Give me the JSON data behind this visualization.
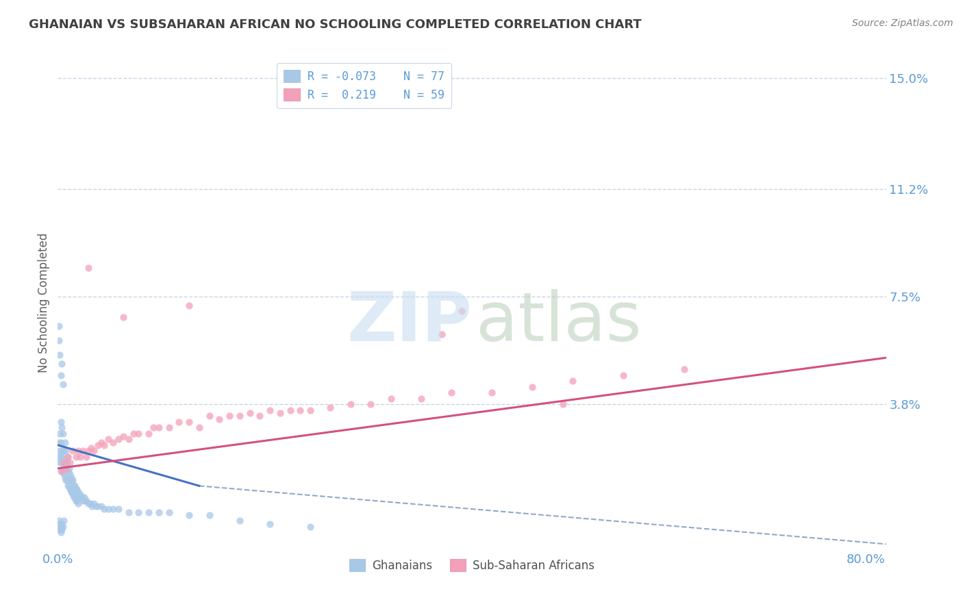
{
  "title": "GHANAIAN VS SUBSAHARAN AFRICAN NO SCHOOLING COMPLETED CORRELATION CHART",
  "source": "Source: ZipAtlas.com",
  "ylabel": "No Schooling Completed",
  "xlim": [
    0.0,
    0.82
  ],
  "ylim": [
    -0.012,
    0.158
  ],
  "ytick_vals": [
    0.0,
    0.038,
    0.075,
    0.112,
    0.15
  ],
  "ytick_labels": [
    "",
    "3.8%",
    "7.5%",
    "11.2%",
    "15.0%"
  ],
  "legend_label1": "Ghanaians",
  "legend_label2": "Sub-Saharan Africans",
  "color_blue": "#a8c8e8",
  "color_pink": "#f4a0b8",
  "line_blue": "#4472c4",
  "line_pink": "#d45080",
  "line_dash_color": "#90a8c8",
  "title_color": "#404040",
  "axis_label_color": "#5b9bd5",
  "ylabel_color": "#606060",
  "source_color": "#808080",
  "grid_color": "#c8d4e4",
  "ghanaians_x": [
    0.001,
    0.001,
    0.002,
    0.002,
    0.002,
    0.003,
    0.003,
    0.003,
    0.003,
    0.004,
    0.004,
    0.004,
    0.005,
    0.005,
    0.005,
    0.006,
    0.006,
    0.007,
    0.007,
    0.007,
    0.008,
    0.008,
    0.008,
    0.009,
    0.009,
    0.01,
    0.01,
    0.01,
    0.011,
    0.011,
    0.012,
    0.012,
    0.013,
    0.013,
    0.014,
    0.014,
    0.015,
    0.015,
    0.016,
    0.016,
    0.017,
    0.017,
    0.018,
    0.018,
    0.019,
    0.019,
    0.02,
    0.02,
    0.021,
    0.022,
    0.023,
    0.024,
    0.025,
    0.026,
    0.027,
    0.028,
    0.03,
    0.032,
    0.034,
    0.036,
    0.038,
    0.04,
    0.043,
    0.046,
    0.05,
    0.055,
    0.06,
    0.07,
    0.08,
    0.09,
    0.1,
    0.11,
    0.13,
    0.15,
    0.18,
    0.21,
    0.25
  ],
  "ghanaians_y": [
    0.02,
    0.025,
    0.018,
    0.022,
    0.028,
    0.015,
    0.02,
    0.025,
    0.032,
    0.018,
    0.022,
    0.03,
    0.016,
    0.02,
    0.028,
    0.014,
    0.022,
    0.013,
    0.018,
    0.025,
    0.012,
    0.016,
    0.022,
    0.012,
    0.018,
    0.01,
    0.015,
    0.02,
    0.01,
    0.016,
    0.009,
    0.014,
    0.008,
    0.013,
    0.008,
    0.012,
    0.007,
    0.012,
    0.006,
    0.01,
    0.006,
    0.01,
    0.005,
    0.009,
    0.005,
    0.009,
    0.004,
    0.008,
    0.007,
    0.007,
    0.006,
    0.006,
    0.005,
    0.006,
    0.005,
    0.005,
    0.004,
    0.004,
    0.003,
    0.004,
    0.003,
    0.003,
    0.003,
    0.002,
    0.002,
    0.002,
    0.002,
    0.001,
    0.001,
    0.001,
    0.001,
    0.001,
    0.0,
    0.0,
    -0.002,
    -0.003,
    -0.004
  ],
  "ghanaians_extra_low": [
    [
      0.001,
      -0.002
    ],
    [
      0.002,
      -0.003
    ],
    [
      0.002,
      -0.005
    ],
    [
      0.003,
      -0.004
    ],
    [
      0.003,
      -0.006
    ],
    [
      0.004,
      -0.003
    ],
    [
      0.004,
      -0.005
    ],
    [
      0.005,
      -0.004
    ],
    [
      0.006,
      -0.002
    ],
    [
      0.001,
      0.06
    ],
    [
      0.002,
      0.055
    ],
    [
      0.003,
      0.048
    ],
    [
      0.004,
      0.052
    ],
    [
      0.005,
      0.045
    ],
    [
      0.001,
      0.065
    ]
  ],
  "subsaharan_x": [
    0.004,
    0.006,
    0.008,
    0.01,
    0.012,
    0.015,
    0.018,
    0.02,
    0.022,
    0.025,
    0.028,
    0.03,
    0.033,
    0.036,
    0.04,
    0.043,
    0.046,
    0.05,
    0.055,
    0.06,
    0.065,
    0.07,
    0.075,
    0.08,
    0.09,
    0.095,
    0.1,
    0.11,
    0.12,
    0.13,
    0.14,
    0.15,
    0.16,
    0.17,
    0.18,
    0.19,
    0.2,
    0.21,
    0.22,
    0.23,
    0.24,
    0.25,
    0.27,
    0.29,
    0.31,
    0.33,
    0.36,
    0.39,
    0.43,
    0.47,
    0.51,
    0.56,
    0.62,
    0.03,
    0.065,
    0.13,
    0.5,
    0.4,
    0.38
  ],
  "subsaharan_y": [
    0.015,
    0.018,
    0.016,
    0.02,
    0.018,
    0.022,
    0.02,
    0.022,
    0.02,
    0.022,
    0.02,
    0.022,
    0.023,
    0.022,
    0.024,
    0.025,
    0.024,
    0.026,
    0.025,
    0.026,
    0.027,
    0.026,
    0.028,
    0.028,
    0.028,
    0.03,
    0.03,
    0.03,
    0.032,
    0.032,
    0.03,
    0.034,
    0.033,
    0.034,
    0.034,
    0.035,
    0.034,
    0.036,
    0.035,
    0.036,
    0.036,
    0.036,
    0.037,
    0.038,
    0.038,
    0.04,
    0.04,
    0.042,
    0.042,
    0.044,
    0.046,
    0.048,
    0.05,
    0.085,
    0.068,
    0.072,
    0.038,
    0.07,
    0.062
  ],
  "blue_line_x": [
    0.0,
    0.14
  ],
  "blue_line_y": [
    0.024,
    0.01
  ],
  "dash_line_x": [
    0.14,
    0.82
  ],
  "dash_line_y": [
    0.01,
    -0.01
  ],
  "pink_line_x": [
    0.0,
    0.82
  ],
  "pink_line_y": [
    0.016,
    0.054
  ]
}
